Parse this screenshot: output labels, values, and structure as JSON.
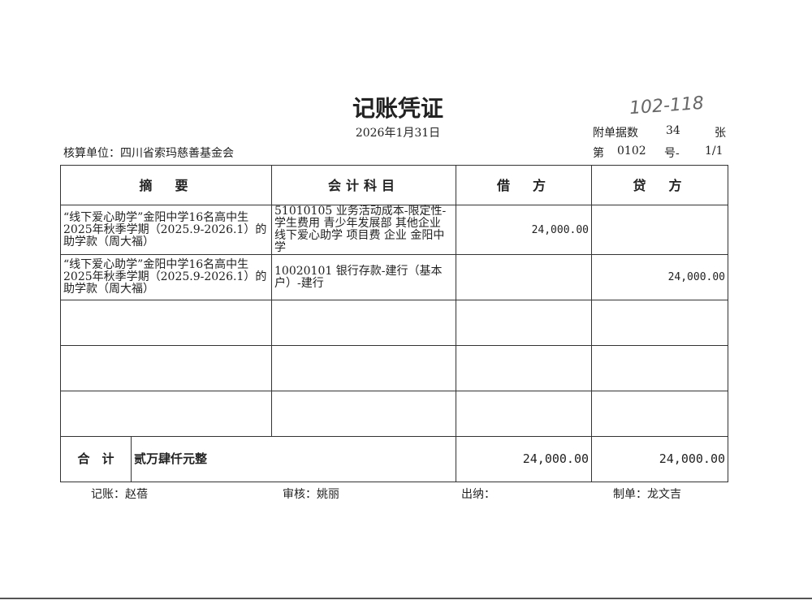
{
  "title": "记账凭证",
  "date": "2026年1月31日",
  "handwritten_note": "102-118",
  "unit_label": "核算单位：",
  "unit": "四川省索玛慈善基金会",
  "attachments_label": "附单据数",
  "attachments": "34",
  "attachments_unit": "张",
  "voucher_no_prefix": "第",
  "voucher_no": "0102",
  "voucher_no_suffix": "号-",
  "page": "1/1",
  "headers": [
    "摘　要",
    "会计科目",
    "借　方",
    "贷　方"
  ],
  "rows": [
    {
      "summary": "“线下爱心助学”金阳中学16名高中生2025年秋季学期（2025.9-2026.1）的助学款（周大福）",
      "account": "51010105 业务活动成本-限定性-学生费用 青少年发展部 其他企业 线下爱心助学 项目费 企业 金阳中学",
      "debit": "24,000.00",
      "credit": ""
    },
    {
      "summary": "“线下爱心助学”金阳中学16名高中生2025年秋季学期（2025.9-2026.1）的助学款（周大福）",
      "account": "10020101 银行存款-建行（基本户）-建行",
      "debit": "",
      "credit": "24,000.00"
    },
    {
      "summary": "",
      "account": "",
      "debit": "",
      "credit": ""
    },
    {
      "summary": "",
      "account": "",
      "debit": "",
      "credit": ""
    },
    {
      "summary": "",
      "account": "",
      "debit": "",
      "credit": ""
    }
  ],
  "total": {
    "label": "合　计",
    "amount_words": "贰万肆仟元整",
    "debit": "24,000.00",
    "credit": "24,000.00"
  },
  "footer": {
    "bookkeeper_label": "记账：",
    "bookkeeper": "赵蓓",
    "reviewer_label": "审核：",
    "reviewer": "姚丽",
    "cashier_label": "出纳：",
    "cashier": "",
    "preparer_label": "制单：",
    "preparer": "龙文吉"
  }
}
